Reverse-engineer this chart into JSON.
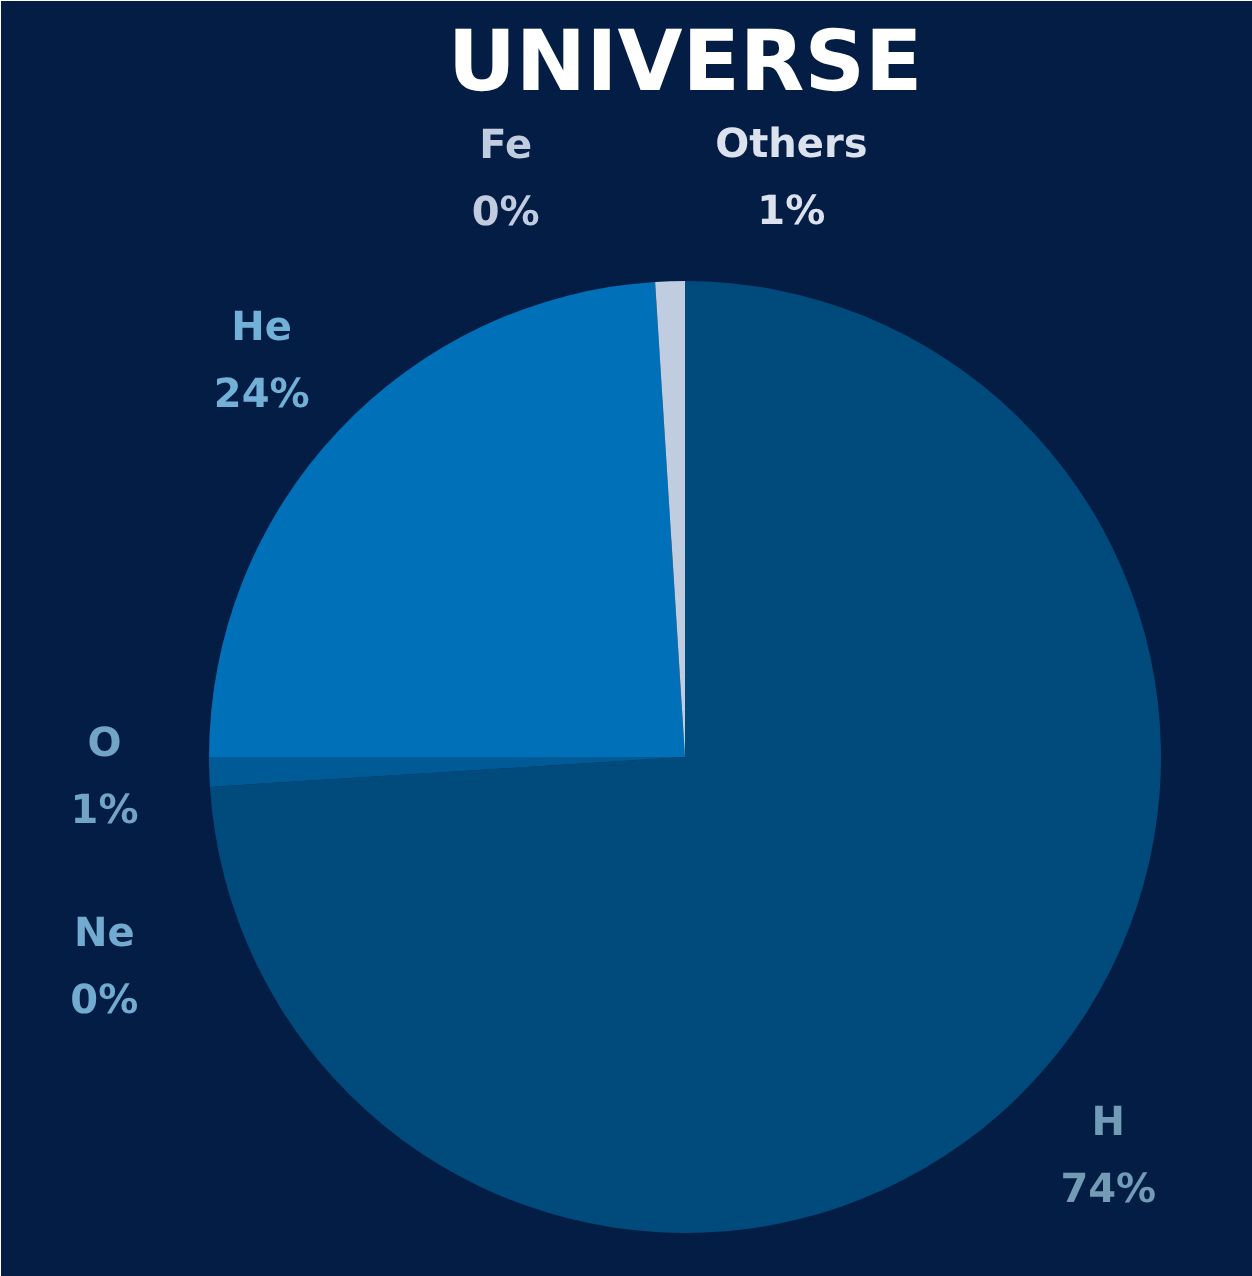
{
  "chart_data": {
    "type": "pie",
    "title": "UNIVERSE",
    "categories": [
      "H",
      "O",
      "Ne",
      "He",
      "Fe",
      "Others"
    ],
    "values": [
      74,
      1,
      0,
      24,
      0,
      1
    ],
    "value_labels": [
      "74%",
      "1%",
      "0%",
      "24%",
      "0%",
      "1%"
    ],
    "colors": [
      "#004a7c",
      "#005a96",
      "#0068a8",
      "#0070b8",
      "#8fa3c8",
      "#c0cce0"
    ]
  }
}
